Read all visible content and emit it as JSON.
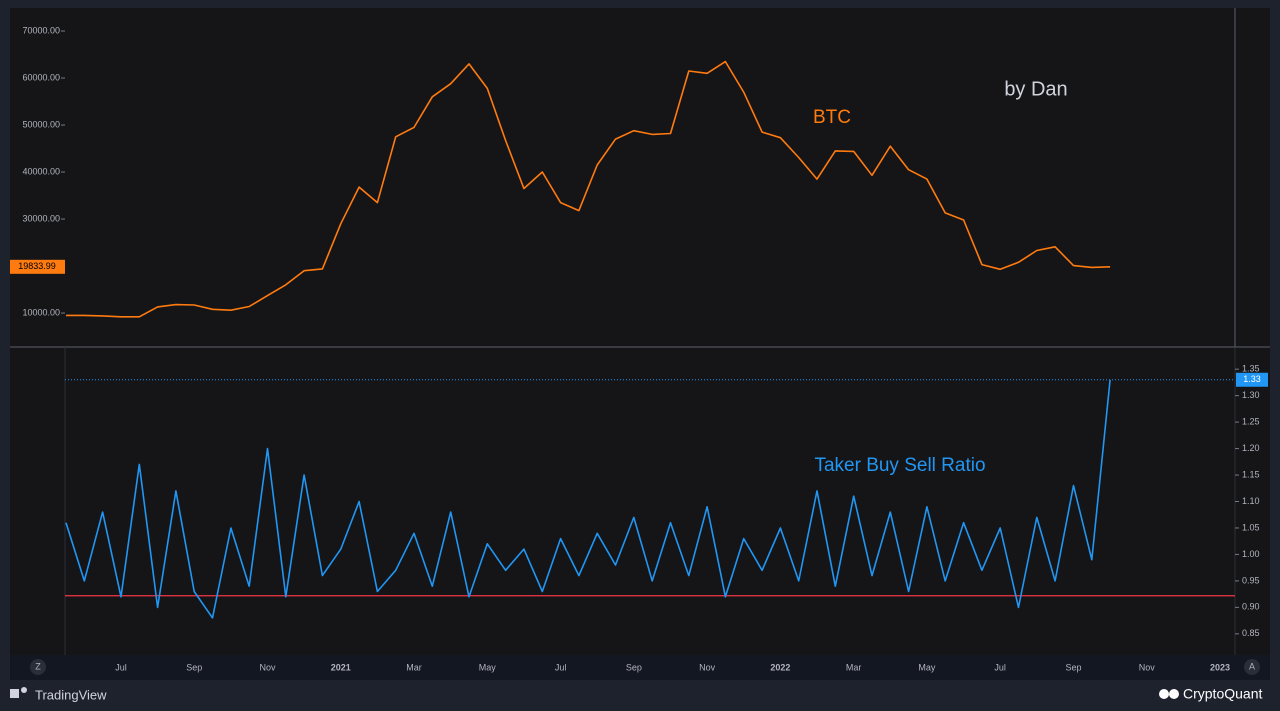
{
  "chart_data": [
    {
      "type": "line",
      "annotation": "by Dan",
      "series": [
        {
          "name": "BTC",
          "color": "#ff7b0f",
          "values": [
            9500,
            9500,
            9400,
            9200,
            9200,
            11300,
            11800,
            11700,
            10800,
            10600,
            11400,
            13700,
            16000,
            19000,
            19400,
            29000,
            36800,
            33500,
            47500,
            49500,
            56000,
            58800,
            63000,
            57800,
            46700,
            36500,
            40000,
            33500,
            31800,
            41500,
            47000,
            48800,
            48000,
            48200,
            61500,
            61000,
            63500,
            57000,
            48500,
            47300,
            43100,
            38500,
            44500,
            44400,
            39300,
            45500,
            40500,
            38500,
            31300,
            29800,
            20300,
            19300,
            20800,
            23300,
            24100,
            20100,
            19700,
            19833.99,
            null,
            null,
            null,
            null,
            null,
            null
          ]
        }
      ],
      "ylim": [
        3200,
        74900
      ],
      "yticks": [
        {
          "value": 10000,
          "label": "10000.00"
        },
        {
          "value": 30000,
          "label": "30000.00"
        },
        {
          "value": 40000,
          "label": "40000.00"
        },
        {
          "value": 50000,
          "label": "50000.00"
        },
        {
          "value": 60000,
          "label": "60000.00"
        },
        {
          "value": 70000,
          "label": "70000.00"
        }
      ]
    },
    {
      "type": "line",
      "categories": [
        null,
        null,
        null,
        "Jul",
        null,
        null,
        null,
        "Sep",
        null,
        null,
        null,
        "Nov",
        null,
        null,
        null,
        "2021",
        null,
        null,
        null,
        "Mar",
        null,
        null,
        null,
        "May",
        null,
        null,
        null,
        "Jul",
        null,
        null,
        null,
        "Sep",
        null,
        null,
        null,
        "Nov",
        null,
        null,
        null,
        "2022",
        null,
        null,
        null,
        "Mar",
        null,
        null,
        null,
        "May",
        null,
        null,
        null,
        "Jul",
        null,
        null,
        null,
        "Sep",
        null,
        null,
        null,
        "Nov",
        null,
        null,
        null,
        "2023"
      ],
      "series": [
        {
          "name": "Taker Buy Sell Ratio",
          "color": "#2196f3",
          "values": [
            1.06,
            0.95,
            1.08,
            0.92,
            1.17,
            0.9,
            1.12,
            0.93,
            0.88,
            1.05,
            0.94,
            1.2,
            0.92,
            1.15,
            0.96,
            1.01,
            1.1,
            0.93,
            0.97,
            1.04,
            0.94,
            1.08,
            0.92,
            1.02,
            0.97,
            1.01,
            0.93,
            1.03,
            0.96,
            1.04,
            0.98,
            1.07,
            0.95,
            1.06,
            0.96,
            1.09,
            0.92,
            1.03,
            0.97,
            1.05,
            0.95,
            1.12,
            0.94,
            1.11,
            0.96,
            1.08,
            0.93,
            1.09,
            0.95,
            1.06,
            0.97,
            1.05,
            0.9,
            1.07,
            0.95,
            1.13,
            0.99,
            1.33,
            null,
            null,
            null,
            null,
            null,
            null
          ]
        }
      ],
      "hline": {
        "value": 0.922,
        "color": "#f23645"
      },
      "ylim": [
        0.81,
        1.39
      ],
      "yticks": [
        {
          "value": 0.85,
          "label": "0.85"
        },
        {
          "value": 0.9,
          "label": "0.90"
        },
        {
          "value": 0.95,
          "label": "0.95"
        },
        {
          "value": 1.0,
          "label": "1.00"
        },
        {
          "value": 1.05,
          "label": "1.05"
        },
        {
          "value": 1.1,
          "label": "1.10"
        },
        {
          "value": 1.15,
          "label": "1.15"
        },
        {
          "value": 1.2,
          "label": "1.20"
        },
        {
          "value": 1.25,
          "label": "1.25"
        },
        {
          "value": 1.3,
          "label": "1.30"
        },
        {
          "value": 1.35,
          "label": "1.35"
        }
      ]
    }
  ],
  "footer": {
    "left": "TradingView",
    "right": "CryptoQuant"
  },
  "buttons": [
    "Z",
    "A"
  ]
}
